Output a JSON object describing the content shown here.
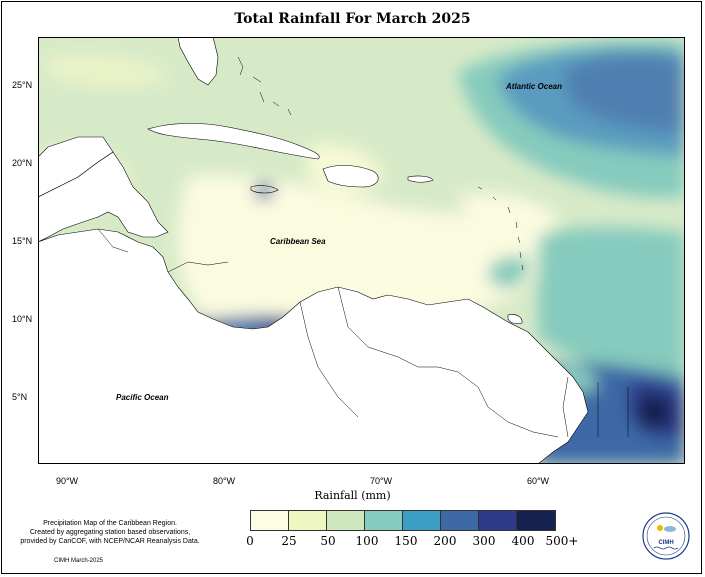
{
  "title": "Total Rainfall For March 2025",
  "map": {
    "y_ticks": [
      "25°N",
      "20°N",
      "15°N",
      "10°N",
      "5°N"
    ],
    "x_ticks": [
      "90°W",
      "80°W",
      "70°W",
      "60°W"
    ],
    "region_labels": {
      "atlantic": "Atlantic Ocean",
      "caribbean": "Caribbean Sea",
      "pacific": "Pacific Ocean"
    }
  },
  "legend": {
    "title": "Rainfall (mm)",
    "breaks": [
      "0",
      "25",
      "50",
      "100",
      "150",
      "200",
      "300",
      "400",
      "500+"
    ],
    "colors": [
      "#fdfde4",
      "#eef6c2",
      "#cfe7bd",
      "#86cbbd",
      "#3d9ec5",
      "#3d69a6",
      "#2d3b8a",
      "#15214f"
    ]
  },
  "credit": {
    "lines": [
      "Precipitation Map of the Caribbean Region.",
      "Created by aggregating station based observations,",
      "provided by CariCOF, with NCEP/NCAR Reanalysis Data."
    ],
    "date": "CIMH March-2025"
  },
  "logo": {
    "text": "CIMH"
  }
}
